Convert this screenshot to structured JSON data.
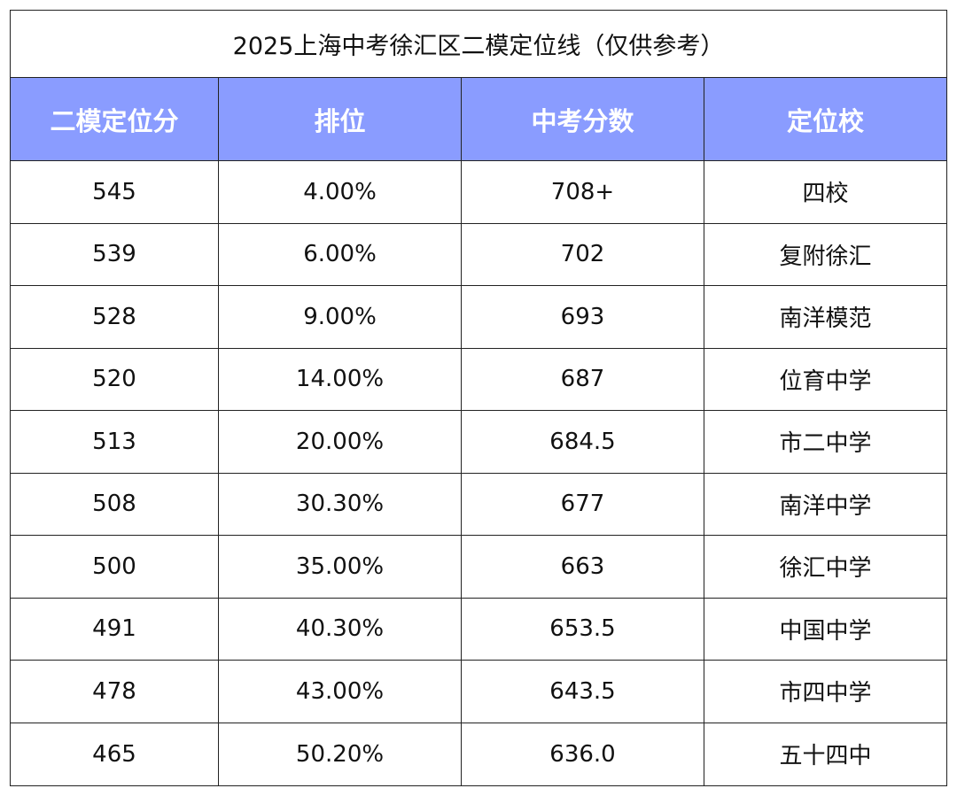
{
  "title": "2025上海中考徐汇区二模定位线（仅供参考）",
  "headers": [
    "二模定位分",
    "排位",
    "中考分数",
    "定位校"
  ],
  "rows": [
    [
      "545",
      "4.00%",
      "708+",
      "四校"
    ],
    [
      "539",
      "6.00%",
      "702",
      "复附徐汇"
    ],
    [
      "528",
      "9.00%",
      "693",
      "南洋模范"
    ],
    [
      "520",
      "14.00%",
      "687",
      "位育中学"
    ],
    [
      "513",
      "20.00%",
      "684.5",
      "市二中学"
    ],
    [
      "508",
      "30.30%",
      "677",
      "南洋中学"
    ],
    [
      "500",
      "35.00%",
      "663",
      "徐汇中学"
    ],
    [
      "491",
      "40.30%",
      "653.5",
      "中国中学"
    ],
    [
      "478",
      "43.00%",
      "643.5",
      "市四中学"
    ],
    [
      "465",
      "50.20%",
      "636.0",
      "五十四中"
    ]
  ],
  "colors": {
    "header_bg": "#8a9cff",
    "header_text": "#ffffff",
    "border": "#222222"
  }
}
